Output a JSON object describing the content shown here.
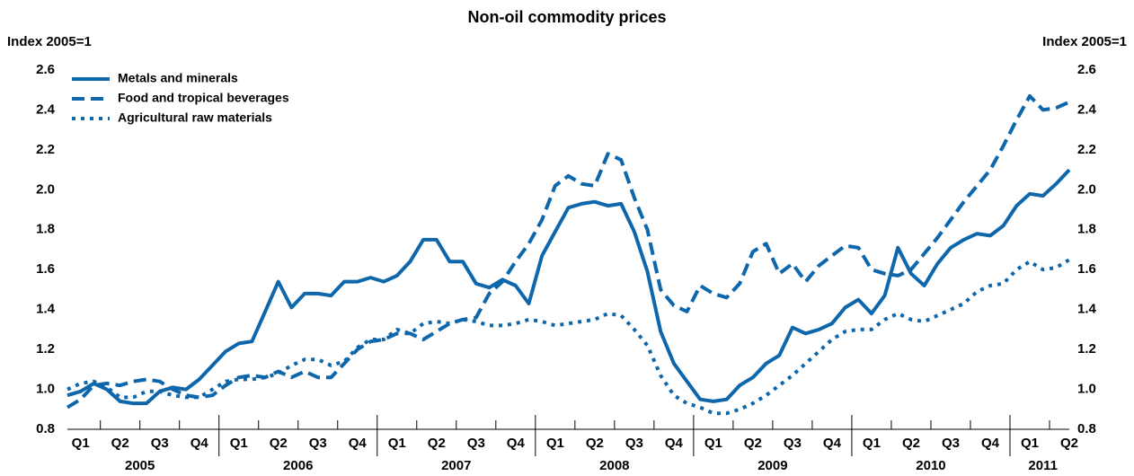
{
  "chart_data": {
    "type": "line",
    "title": "Non-oil commodity prices",
    "y_label": "Index 2005=1",
    "y2_label": "Index 2005=1",
    "categories": [
      null,
      "Q1",
      null,
      null,
      "Q2",
      null,
      null,
      "Q3",
      null,
      null,
      "Q4",
      null,
      null,
      "Q1",
      null,
      null,
      "Q2",
      null,
      null,
      "Q3",
      null,
      null,
      "Q4",
      null,
      null,
      "Q1",
      null,
      null,
      "Q2",
      null,
      null,
      "Q3",
      null,
      null,
      "Q4",
      null,
      null,
      "Q1",
      null,
      null,
      "Q2",
      null,
      null,
      "Q3",
      null,
      null,
      "Q4",
      null,
      null,
      "Q1",
      null,
      null,
      "Q2",
      null,
      null,
      "Q3",
      null,
      null,
      "Q4",
      null,
      null,
      "Q1",
      null,
      null,
      "Q2",
      null,
      null,
      "Q3",
      null,
      null,
      "Q4",
      null,
      null,
      "Q1",
      null,
      null,
      "Q2"
    ],
    "years": [
      "2005",
      "2006",
      "2007",
      "2008",
      "2009",
      "2010",
      "2011"
    ],
    "series": [
      {
        "name": "Metals and minerals",
        "color": "#0e66ab",
        "dash": "solid",
        "values": [
          0.97,
          0.99,
          1.03,
          1.0,
          0.94,
          0.93,
          0.93,
          0.99,
          1.01,
          1.0,
          1.05,
          1.12,
          1.19,
          1.23,
          1.24,
          1.39,
          1.54,
          1.41,
          1.48,
          1.48,
          1.47,
          1.54,
          1.54,
          1.56,
          1.54,
          1.57,
          1.64,
          1.75,
          1.75,
          1.64,
          1.64,
          1.53,
          1.51,
          1.55,
          1.52,
          1.43,
          1.67,
          1.79,
          1.91,
          1.93,
          1.94,
          1.92,
          1.93,
          1.79,
          1.59,
          1.29,
          1.13,
          1.04,
          0.95,
          0.94,
          0.95,
          1.02,
          1.06,
          1.13,
          1.17,
          1.31,
          1.28,
          1.3,
          1.33,
          1.41,
          1.45,
          1.38,
          1.47,
          1.71,
          1.58,
          1.52,
          1.63,
          1.71,
          1.75,
          1.78,
          1.77,
          1.82,
          1.92,
          1.98,
          1.97,
          2.03,
          2.1
        ]
      },
      {
        "name": "Food and tropical beverages",
        "color": "#0e66ab",
        "dash": "dashed",
        "values": [
          0.91,
          0.95,
          1.02,
          1.03,
          1.02,
          1.04,
          1.05,
          1.04,
          1.0,
          0.97,
          0.96,
          0.97,
          1.02,
          1.06,
          1.07,
          1.06,
          1.09,
          1.06,
          1.09,
          1.06,
          1.06,
          1.13,
          1.2,
          1.24,
          1.25,
          1.28,
          1.28,
          1.25,
          1.29,
          1.33,
          1.35,
          1.36,
          1.48,
          1.54,
          1.64,
          1.73,
          1.85,
          2.02,
          2.07,
          2.03,
          2.02,
          2.18,
          2.15,
          1.96,
          1.8,
          1.5,
          1.42,
          1.39,
          1.52,
          1.48,
          1.46,
          1.53,
          1.69,
          1.73,
          1.58,
          1.63,
          1.54,
          1.62,
          1.67,
          1.72,
          1.71,
          1.6,
          1.58,
          1.57,
          1.6,
          1.68,
          1.76,
          1.85,
          1.94,
          2.02,
          2.1,
          2.22,
          2.35,
          2.47,
          2.4,
          2.41,
          2.44
        ]
      },
      {
        "name": "Agricultural raw materials",
        "color": "#0e66ab",
        "dash": "dotted",
        "values": [
          1.0,
          1.03,
          1.04,
          1.01,
          0.96,
          0.96,
          0.99,
          0.99,
          0.97,
          0.96,
          0.96,
          1.0,
          1.04,
          1.05,
          1.05,
          1.06,
          1.08,
          1.12,
          1.15,
          1.15,
          1.12,
          1.14,
          1.21,
          1.25,
          1.25,
          1.3,
          1.28,
          1.33,
          1.34,
          1.33,
          1.35,
          1.34,
          1.32,
          1.32,
          1.33,
          1.35,
          1.34,
          1.32,
          1.33,
          1.34,
          1.35,
          1.38,
          1.37,
          1.3,
          1.22,
          1.07,
          0.97,
          0.93,
          0.91,
          0.88,
          0.88,
          0.9,
          0.93,
          0.97,
          1.02,
          1.07,
          1.13,
          1.19,
          1.25,
          1.29,
          1.3,
          1.3,
          1.35,
          1.38,
          1.35,
          1.34,
          1.37,
          1.4,
          1.43,
          1.49,
          1.52,
          1.53,
          1.6,
          1.64,
          1.6,
          1.61,
          1.65
        ]
      }
    ],
    "ylim": [
      0.8,
      2.6
    ],
    "yticks": [
      0.8,
      {
        "value": 1,
        "label": "1.0"
      },
      1.2,
      1.4,
      1.6,
      1.8,
      {
        "value": 2,
        "label": "2.0"
      },
      2.2,
      2.4,
      2.6
    ],
    "y2lim": [
      0.8,
      2.6
    ],
    "y2ticks": [
      0.8,
      {
        "value": 1,
        "label": "1.0"
      },
      1.2,
      1.4,
      1.6,
      1.8,
      {
        "value": 2,
        "label": "2.0"
      },
      2.2,
      2.4,
      2.6
    ],
    "legend": "top-left",
    "grid": false
  }
}
